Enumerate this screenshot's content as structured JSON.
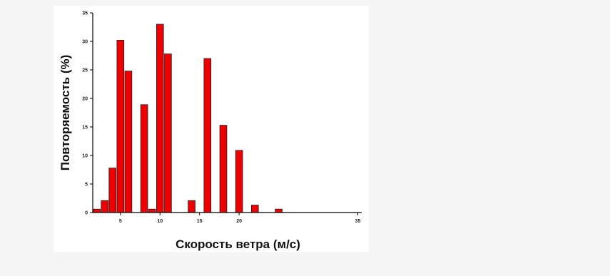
{
  "chart_data": {
    "type": "bar",
    "title": "",
    "xlabel": "Скорость ветра (м/с)",
    "ylabel": "Повторяемость (%)",
    "xlim": [
      1.5,
      35.5
    ],
    "ylim": [
      0,
      35
    ],
    "xticks": [
      5,
      10,
      15,
      20,
      35
    ],
    "yticks": [
      0,
      5,
      10,
      15,
      20,
      25,
      30,
      35
    ],
    "x": [
      2,
      3,
      4,
      5,
      6,
      8,
      9,
      10,
      11,
      14,
      16,
      18,
      20,
      22,
      25
    ],
    "values": [
      0.6,
      2.1,
      7.8,
      30.2,
      24.8,
      18.9,
      0.6,
      33.0,
      27.8,
      2.1,
      27.0,
      15.3,
      10.9,
      1.3,
      0.6
    ],
    "bar_color": "#ee0000",
    "grid": false,
    "legend": "none"
  }
}
